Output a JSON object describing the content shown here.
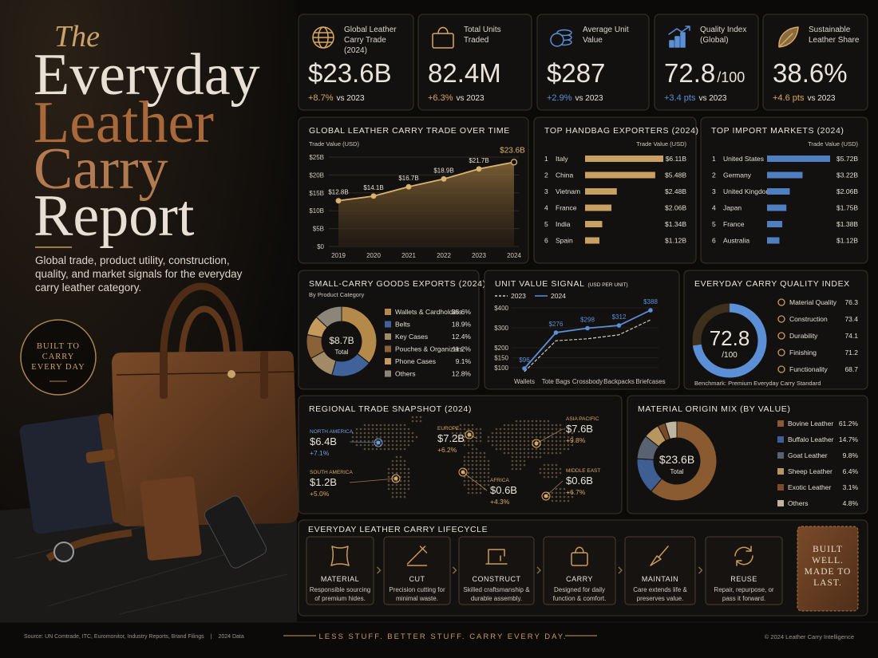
{
  "header": {
    "title": [
      "The",
      "Everyday",
      "Leather",
      "Carry",
      "Report"
    ],
    "subtitle": "Global trade, product utility, construction, quality, and market signals for the everyday carry leather category.",
    "badge": "BUILT TO CARRY EVERY DAY"
  },
  "kpis": [
    {
      "label": "Global Leather Carry Trade (2024)",
      "value": "$23.6B",
      "change": "+8.7%",
      "compare": "vs 2023",
      "color": "#d9a862"
    },
    {
      "label": "Total Units Traded",
      "value": "82.4M",
      "change": "+6.3%",
      "compare": "vs 2023",
      "color": "#d9a862"
    },
    {
      "label": "Average Unit Value",
      "value": "$287",
      "change": "+2.9%",
      "compare": "vs 2023",
      "color": "#5b8fd6"
    },
    {
      "label": "Quality Index (Global)",
      "value": "72.8",
      "suffix": "/100",
      "change": "+3.4 pts",
      "compare": "vs 2023",
      "color": "#5b8fd6"
    },
    {
      "label": "Sustainable Leather Share",
      "value": "38.6%",
      "change": "+4.6 pts",
      "compare": "vs 2023",
      "color": "#d9a862"
    }
  ],
  "chart_data": [
    {
      "type": "area",
      "title": "GLOBAL LEATHER CARRY TRADE OVER TIME",
      "y_label": "Trade Value (USD)",
      "x": [
        2019,
        2020,
        2021,
        2022,
        2023,
        2024
      ],
      "values": [
        12.8,
        14.1,
        16.7,
        18.9,
        21.7,
        23.6
      ],
      "value_labels": [
        "$12.8B",
        "$14.1B",
        "$16.7B",
        "$18.9B",
        "$21.7B",
        "$23.6B"
      ],
      "ylim": [
        0,
        25
      ],
      "yticks": [
        {
          "value": 0,
          "label": "$0"
        },
        {
          "value": 5,
          "label": "$5B"
        },
        {
          "value": 10,
          "label": "$10B"
        },
        {
          "value": 15,
          "label": "$15B"
        },
        {
          "value": 20,
          "label": "$20B"
        },
        {
          "value": 25,
          "label": "$25B"
        }
      ],
      "color": "#d9b46e",
      "grid": true
    },
    {
      "type": "bar",
      "title": "TOP HANDBAG EXPORTERS (2024)",
      "axis_label": "Trade Value (USD)",
      "ranks": [
        1,
        2,
        3,
        4,
        5,
        6
      ],
      "categories": [
        "Italy",
        "China",
        "Vietnam",
        "France",
        "India",
        "Spain"
      ],
      "values": [
        6.11,
        5.48,
        2.48,
        2.06,
        1.34,
        1.12
      ],
      "value_labels": [
        "$6.11B",
        "$5.48B",
        "$2.48B",
        "$2.06B",
        "$1.34B",
        "$1.12B"
      ],
      "color": "#c9a064"
    },
    {
      "type": "bar",
      "title": "TOP IMPORT MARKETS (2024)",
      "axis_label": "Trade Value (USD)",
      "ranks": [
        1,
        2,
        3,
        4,
        5,
        6
      ],
      "categories": [
        "United States",
        "Germany",
        "United Kingdom",
        "Japan",
        "France",
        "Australia"
      ],
      "values": [
        5.72,
        3.22,
        2.06,
        1.75,
        1.38,
        1.12
      ],
      "value_labels": [
        "$5.72B",
        "$3.22B",
        "$2.06B",
        "$1.75B",
        "$1.38B",
        "$1.12B"
      ],
      "color": "#4f7fc0"
    },
    {
      "type": "donut",
      "title": "SMALL-CARRY GOODS EXPORTS (2024)",
      "subtitle": "By Product Category",
      "total_label": "$8.7B",
      "total_caption": "Total",
      "categories": [
        "Wallets & Cardholders",
        "Belts",
        "Key Cases",
        "Pouches & Organizers",
        "Phone Cases",
        "Others"
      ],
      "values": [
        35.6,
        18.9,
        12.4,
        11.2,
        9.1,
        12.8
      ],
      "value_labels": [
        "35.6%",
        "18.9%",
        "12.4%",
        "11.2%",
        "9.1%",
        "12.8%"
      ],
      "colors": [
        "#b48a4a",
        "#40629a",
        "#a38a66",
        "#8a6238",
        "#c49a5e",
        "#8c8579"
      ]
    },
    {
      "type": "line",
      "title": "UNIT VALUE SIGNAL",
      "subtitle": "(USD PER UNIT)",
      "categories": [
        "Wallets",
        "Tote Bags",
        "Crossbody",
        "Backpacks",
        "Briefcases"
      ],
      "series": [
        {
          "name": "2023",
          "color": "#cfcac2",
          "dashed": true,
          "values": [
            80,
            235,
            245,
            265,
            340
          ]
        },
        {
          "name": "2024",
          "color": "#5b8fd6",
          "values": [
            96,
            276,
            298,
            312,
            388
          ],
          "value_labels": [
            "$96",
            "$276",
            "$298",
            "$312",
            "$388"
          ]
        }
      ],
      "ylim": [
        60,
        420
      ],
      "yticks": [
        {
          "value": 100,
          "label": "$100"
        },
        {
          "value": 150,
          "label": "$150"
        },
        {
          "value": 200,
          "label": "$200"
        },
        {
          "value": 300,
          "label": "$300"
        },
        {
          "value": 400,
          "label": "$400"
        }
      ]
    },
    {
      "type": "gauge",
      "title": "EVERYDAY CARRY QUALITY INDEX",
      "value": 72.8,
      "scale_max": {
        "value": 100,
        "label": "/100"
      },
      "color": "#5b8fd6",
      "categories": [
        "Material Quality",
        "Construction",
        "Durability",
        "Finishing",
        "Functionality"
      ],
      "values": [
        76.3,
        73.4,
        74.1,
        71.2,
        68.7
      ],
      "note": "Benchmark: Premium Everyday Carry Standard"
    },
    {
      "type": "map",
      "title": "REGIONAL TRADE SNAPSHOT (2024)",
      "regions": [
        {
          "name": "NORTH AMERICA",
          "value": "$6.4B",
          "change": "+7.1%",
          "color": "#6f9ee0"
        },
        {
          "name": "SOUTH AMERICA",
          "value": "$1.2B",
          "change": "+5.0%",
          "color": "#d9a862"
        },
        {
          "name": "EUROPE",
          "value": "$7.2B",
          "change": "+6.2%",
          "color": "#d9a862"
        },
        {
          "name": "AFRICA",
          "value": "$0.6B",
          "change": "+4.3%",
          "color": "#d9a862"
        },
        {
          "name": "ASIA PACIFIC",
          "value": "$7.6B",
          "change": "+9.8%",
          "color": "#d9a862"
        },
        {
          "name": "MIDDLE EAST",
          "value": "$0.6B",
          "change": "+6.7%",
          "color": "#d9a862"
        }
      ]
    },
    {
      "type": "donut",
      "title": "MATERIAL ORIGIN MIX (BY VALUE)",
      "total_label": "$23.6B",
      "total_caption": "Total",
      "categories": [
        "Bovine Leather",
        "Buffalo Leather",
        "Goat Leather",
        "Sheep Leather",
        "Exotic Leather",
        "Others"
      ],
      "values": [
        61.2,
        14.7,
        9.8,
        6.4,
        3.1,
        4.8
      ],
      "value_labels": [
        "61.2%",
        "14.7%",
        "9.8%",
        "6.4%",
        "3.1%",
        "4.8%"
      ],
      "colors": [
        "#8a5a30",
        "#3f5f94",
        "#596270",
        "#b89660",
        "#7a4a2a",
        "#bfb59f"
      ]
    }
  ],
  "lifecycle": {
    "title": "EVERYDAY LEATHER CARRY LIFECYCLE",
    "steps": [
      {
        "name": "MATERIAL",
        "desc": "Responsible sourcing of premium hides."
      },
      {
        "name": "CUT",
        "desc": "Precision cutting for minimal waste."
      },
      {
        "name": "CONSTRUCT",
        "desc": "Skilled craftsmanship & durable assembly."
      },
      {
        "name": "CARRY",
        "desc": "Designed for daily function & comfort."
      },
      {
        "name": "MAINTAIN",
        "desc": "Care extends life & preserves value."
      },
      {
        "name": "REUSE",
        "desc": "Repair, repurpose, or pass it forward."
      }
    ],
    "badge": "BUILT WELL. MADE TO LAST."
  },
  "footer": {
    "source": "Source: UN Comtrade, ITC, Euromonitor, Industry Reports, Brand Filings",
    "separator": "|",
    "data_year": "2024 Data",
    "tagline": "LESS STUFF. BETTER STUFF. CARRY EVERY DAY.",
    "copyright": "© 2024 Leather Carry Intelligence"
  }
}
